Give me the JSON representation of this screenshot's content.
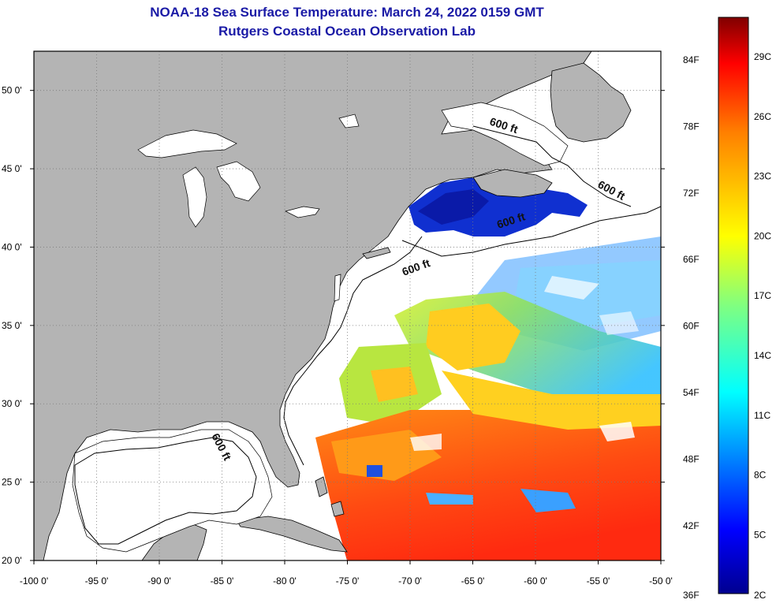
{
  "title": "NOAA-18 Sea Surface Temperature:  March 24, 2022 0159 GMT",
  "subtitle": "Rutgers Coastal Ocean Observation Lab",
  "map": {
    "lon_range": [
      -100,
      -50
    ],
    "lat_range": [
      20,
      52.5
    ],
    "lon_ticks": [
      {
        "value": -100,
        "label": "-100 0'"
      },
      {
        "value": -95,
        "label": "-95 0'"
      },
      {
        "value": -90,
        "label": "-90 0'"
      },
      {
        "value": -85,
        "label": "-85 0'"
      },
      {
        "value": -80,
        "label": "-80 0'"
      },
      {
        "value": -75,
        "label": "-75 0'"
      },
      {
        "value": -70,
        "label": "-70 0'"
      },
      {
        "value": -65,
        "label": "-65 0'"
      },
      {
        "value": -60,
        "label": "-60 0'"
      },
      {
        "value": -55,
        "label": "-55 0'"
      },
      {
        "value": -50,
        "label": "-50 0'"
      }
    ],
    "lat_ticks": [
      {
        "value": 20,
        "label": "20 0'"
      },
      {
        "value": 25,
        "label": "25 0'"
      },
      {
        "value": 30,
        "label": "30 0'"
      },
      {
        "value": 35,
        "label": "35 0'"
      },
      {
        "value": 40,
        "label": "40 0'"
      },
      {
        "value": 45,
        "label": "45 0'"
      },
      {
        "value": 50,
        "label": "50 0'"
      }
    ],
    "isobath_label": "600 ft",
    "isobath_labels": [
      "600 ft",
      "600 ft",
      "600 ft",
      "600 ft",
      "600 ft"
    ],
    "colors": {
      "land": "#b4b4b4",
      "water_nodata": "#ffffff",
      "grid": "#7a7a7a"
    }
  },
  "colorbar": {
    "fahrenheit_labels": [
      "84F",
      "78F",
      "72F",
      "66F",
      "60F",
      "54F",
      "48F",
      "42F",
      "36F"
    ],
    "celsius_labels": [
      "29C",
      "26C",
      "23C",
      "20C",
      "17C",
      "14C",
      "11C",
      "8C",
      "5C",
      "2C"
    ],
    "colors": [
      "#00008f",
      "#0000ff",
      "#0080ff",
      "#00ffff",
      "#80ff80",
      "#ffff00",
      "#ff8000",
      "#ff0000",
      "#800000"
    ]
  }
}
